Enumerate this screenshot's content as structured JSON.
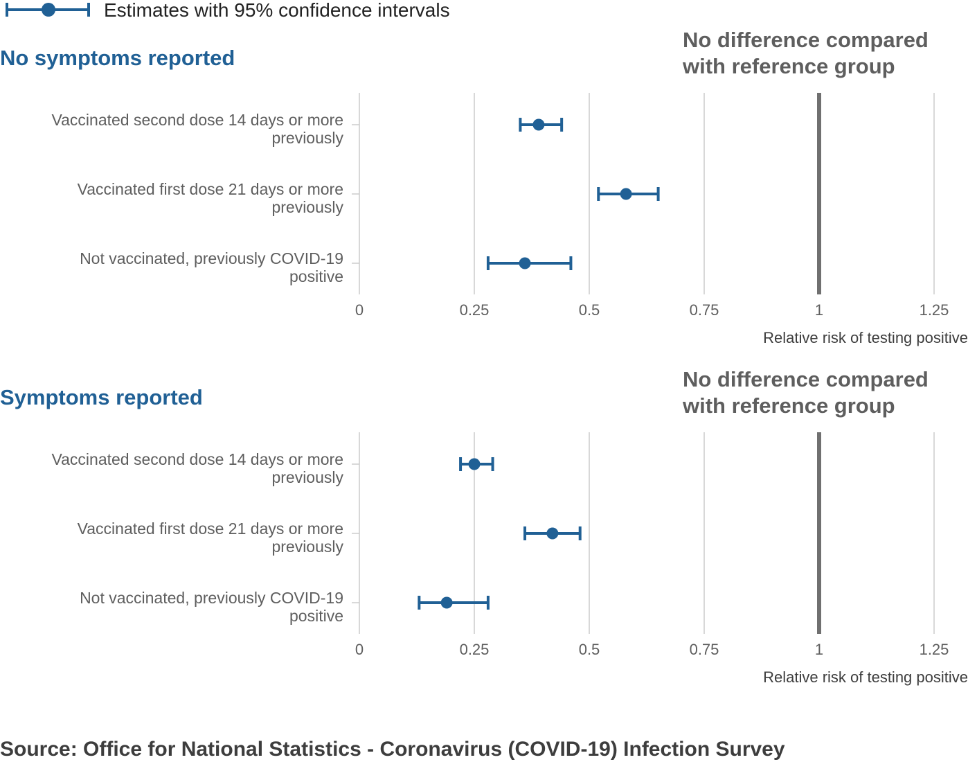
{
  "legend": {
    "label": "Estimates with 95% confidence intervals"
  },
  "source": "Source: Office for National Statistics - Coronavirus (COVID-19) Infection Survey",
  "colors": {
    "series": "#206095",
    "reference_line": "#707070",
    "grid": "#cccccc",
    "title": "#206095",
    "text": "#5e5e5e"
  },
  "chart_data": [
    {
      "type": "scatter",
      "title": "No symptoms reported",
      "reference_line": {
        "x": 1,
        "label_lines": [
          "No difference compared",
          "with reference group"
        ]
      },
      "categories": [
        {
          "lines": [
            "Vaccinated second dose 14 days or more",
            "previously"
          ]
        },
        {
          "lines": [
            "Vaccinated first dose 21 days or more",
            "previously"
          ]
        },
        {
          "lines": [
            "Not vaccinated, previously COVID-19",
            "positive"
          ]
        }
      ],
      "series": [
        {
          "values": [
            {
              "estimate": 0.39,
              "lower": 0.35,
              "upper": 0.44
            },
            {
              "estimate": 0.58,
              "lower": 0.52,
              "upper": 0.65
            },
            {
              "estimate": 0.36,
              "lower": 0.28,
              "upper": 0.46
            }
          ]
        }
      ],
      "xlim": [
        0,
        1.25
      ],
      "xticks": [
        "0",
        "0.25",
        "0.5",
        "0.75",
        "1",
        "1.25"
      ],
      "xlabel": "Relative risk of testing positive",
      "grid": true
    },
    {
      "type": "scatter",
      "title": "Symptoms reported",
      "reference_line": {
        "x": 1,
        "label_lines": [
          "No difference compared",
          "with reference group"
        ]
      },
      "categories": [
        {
          "lines": [
            "Vaccinated second dose 14 days or more",
            "previously"
          ]
        },
        {
          "lines": [
            "Vaccinated first dose 21 days or more",
            "previously"
          ]
        },
        {
          "lines": [
            "Not vaccinated, previously COVID-19",
            "positive"
          ]
        }
      ],
      "series": [
        {
          "values": [
            {
              "estimate": 0.25,
              "lower": 0.22,
              "upper": 0.29
            },
            {
              "estimate": 0.42,
              "lower": 0.36,
              "upper": 0.48
            },
            {
              "estimate": 0.19,
              "lower": 0.13,
              "upper": 0.28
            }
          ]
        }
      ],
      "xlim": [
        0,
        1.25
      ],
      "xticks": [
        "0",
        "0.25",
        "0.5",
        "0.75",
        "1",
        "1.25"
      ],
      "xlabel": "Relative risk of testing positive",
      "grid": true
    }
  ]
}
